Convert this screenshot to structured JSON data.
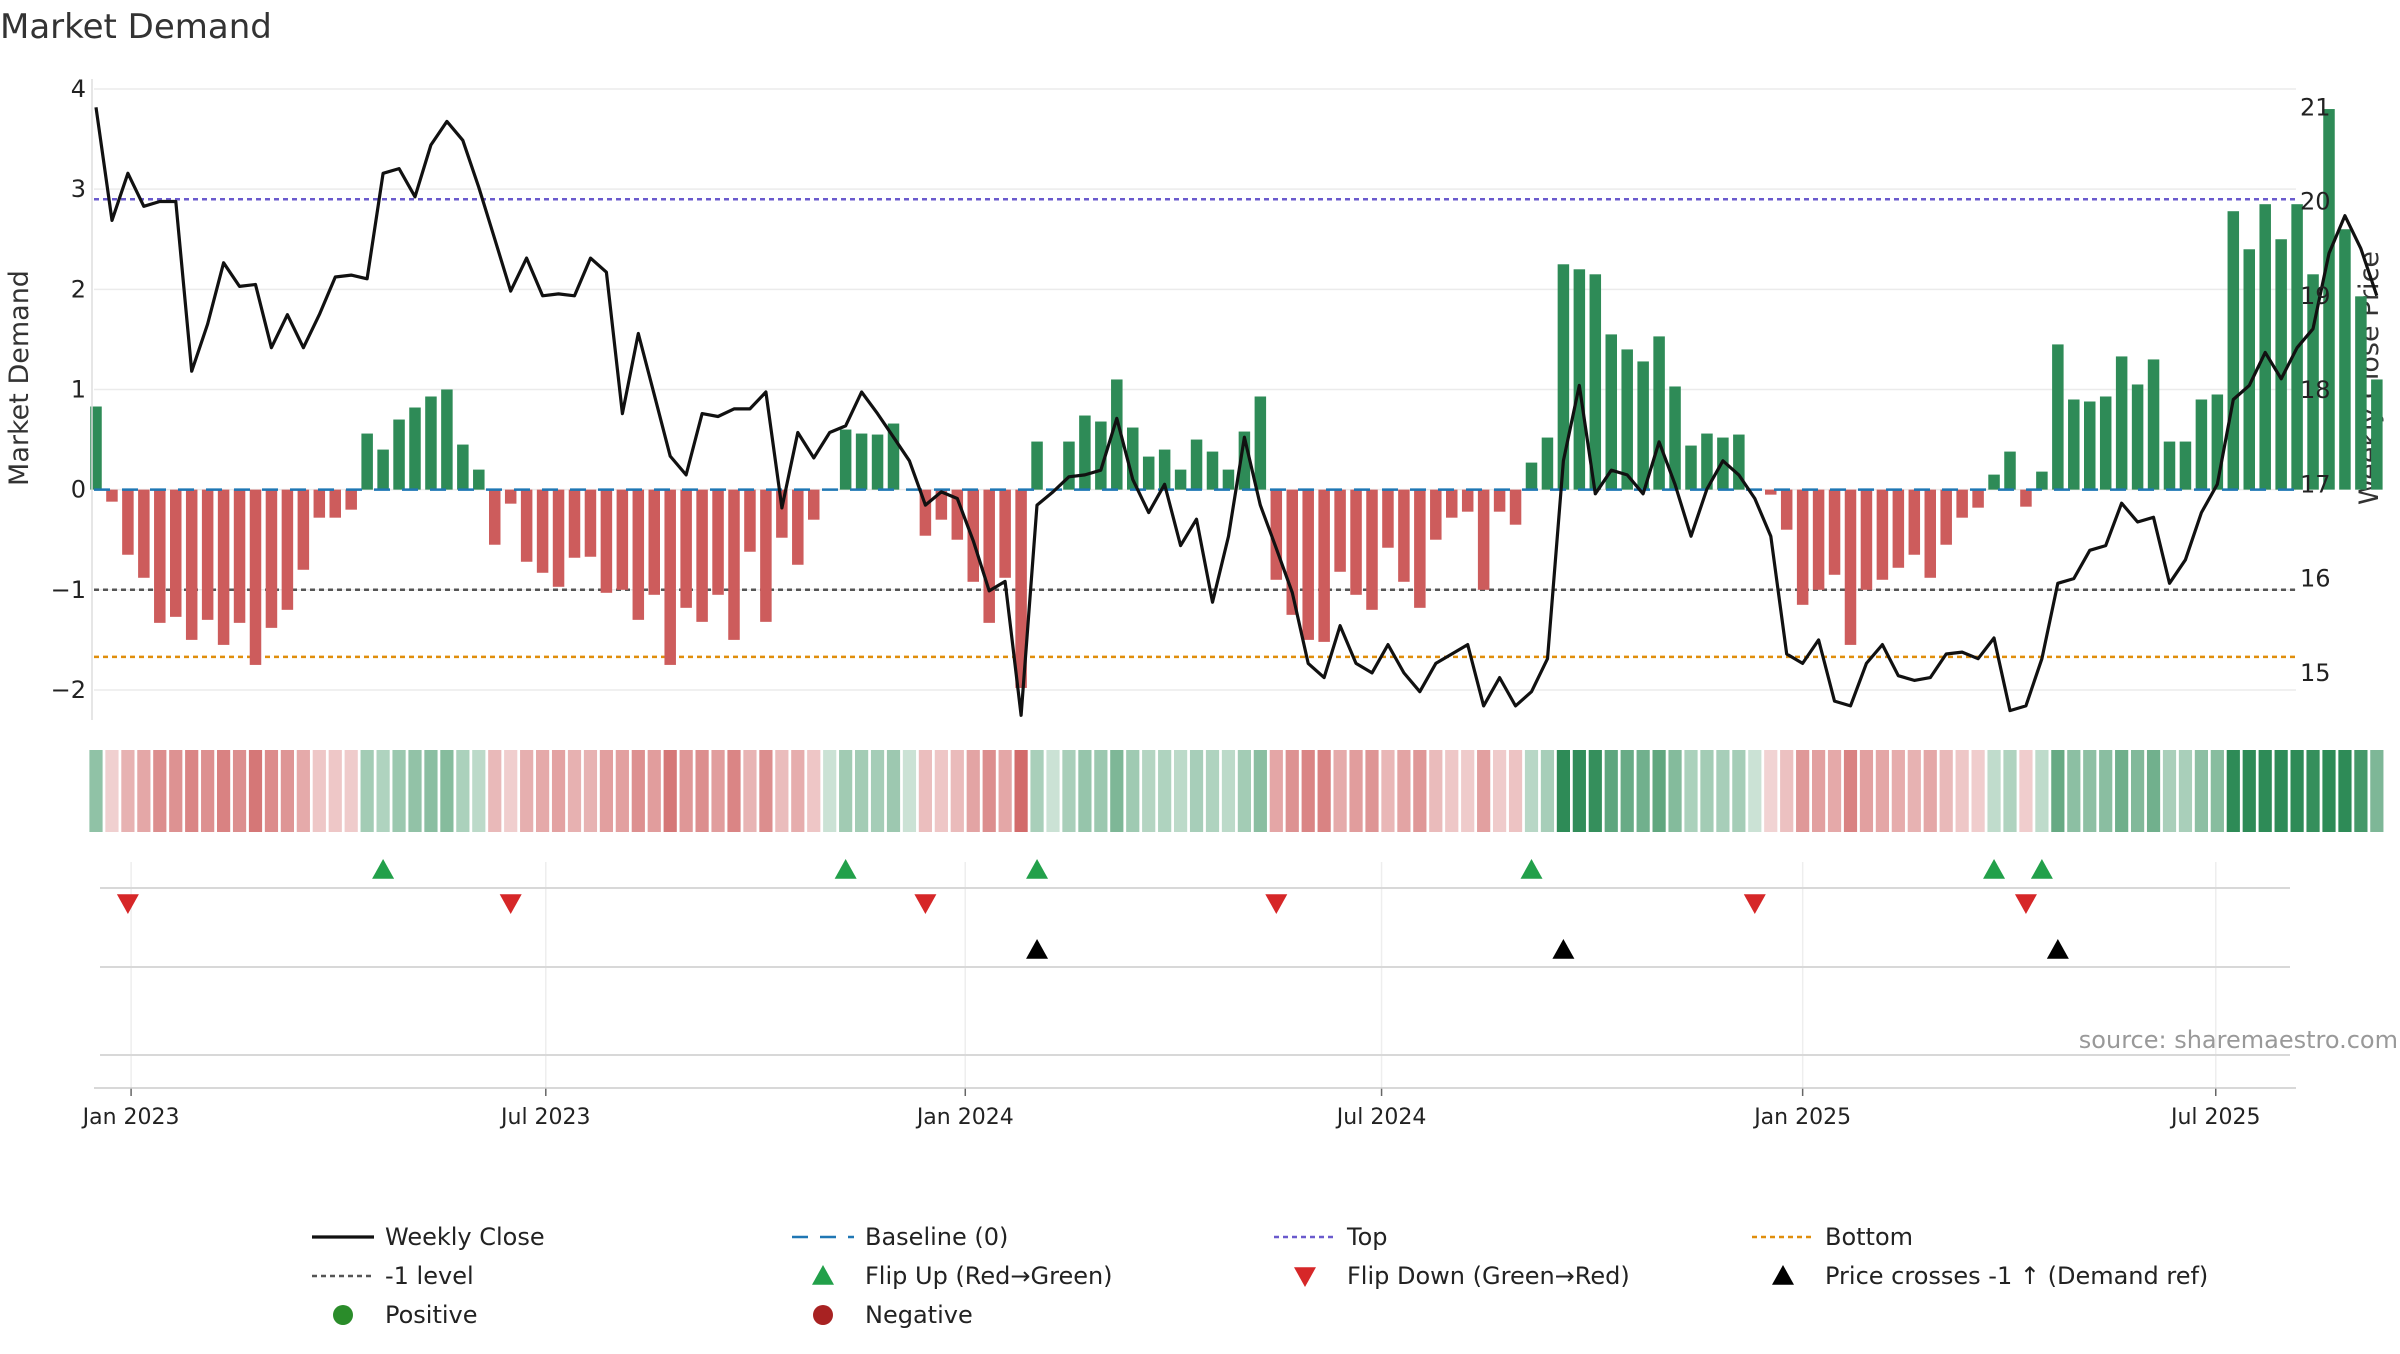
{
  "chart_data": {
    "type": "bar",
    "title": "Market Demand",
    "ylabel_left": "Market Demand",
    "ylabel_right": "Weekly Close Price",
    "source": "source: sharemaestro.com",
    "ylim_left": [
      -2.3,
      4.1
    ],
    "ylim_right": [
      14.5,
      21.3
    ],
    "yticks_left": [
      {
        "v": 4,
        "label": "4"
      },
      {
        "v": 3,
        "label": "3"
      },
      {
        "v": 2,
        "label": "2"
      },
      {
        "v": 1,
        "label": "1"
      },
      {
        "v": 0,
        "label": "0"
      },
      {
        "v": -1,
        "label": "−1"
      },
      {
        "v": -2,
        "label": "−2"
      }
    ],
    "yticks_right": [
      {
        "v": 21,
        "label": "21"
      },
      {
        "v": 20,
        "label": "20"
      },
      {
        "v": 19,
        "label": "19"
      },
      {
        "v": 18,
        "label": "18"
      },
      {
        "v": 17,
        "label": "17"
      },
      {
        "v": 16,
        "label": "16"
      },
      {
        "v": 15,
        "label": "15"
      }
    ],
    "xticks": [
      {
        "i": 2.2,
        "label": "Jan 2023"
      },
      {
        "i": 28.2,
        "label": "Jul 2023"
      },
      {
        "i": 54.5,
        "label": "Jan 2024"
      },
      {
        "i": 80.6,
        "label": "Jul 2024"
      },
      {
        "i": 107.0,
        "label": "Jan 2025"
      },
      {
        "i": 132.9,
        "label": "Jul 2025"
      }
    ],
    "reference_lines": {
      "top": 2.9,
      "bottom": -1.67,
      "minus_one": -1,
      "baseline": 0
    },
    "demand": [
      0.83,
      -0.12,
      -0.65,
      -0.88,
      -1.33,
      -1.27,
      -1.5,
      -1.3,
      -1.55,
      -1.33,
      -1.75,
      -1.38,
      -1.2,
      -0.8,
      -0.28,
      -0.28,
      -0.2,
      0.56,
      0.4,
      0.7,
      0.82,
      0.93,
      1.0,
      0.45,
      0.2,
      -0.55,
      -0.14,
      -0.72,
      -0.83,
      -0.97,
      -0.68,
      -0.67,
      -1.03,
      -1.0,
      -1.3,
      -1.05,
      -1.75,
      -1.18,
      -1.32,
      -1.05,
      -1.5,
      -0.62,
      -1.32,
      -0.48,
      -0.75,
      -0.3,
      0.0,
      0.6,
      0.56,
      0.55,
      0.66,
      0.0,
      -0.46,
      -0.3,
      -0.5,
      -0.92,
      -1.33,
      -0.88,
      -1.98,
      0.48,
      0.0,
      0.48,
      0.74,
      0.68,
      1.1,
      0.62,
      0.33,
      0.4,
      0.2,
      0.5,
      0.38,
      0.2,
      0.58,
      0.93,
      -0.9,
      -1.25,
      -1.5,
      -1.52,
      -0.82,
      -1.05,
      -1.2,
      -0.58,
      -0.92,
      -1.18,
      -0.5,
      -0.28,
      -0.22,
      -1.0,
      -0.22,
      -0.35,
      0.27,
      0.52,
      2.25,
      2.2,
      2.15,
      1.55,
      1.4,
      1.28,
      1.53,
      1.03,
      0.44,
      0.56,
      0.52,
      0.55,
      0.0,
      -0.05,
      -0.4,
      -1.15,
      -1.0,
      -0.85,
      -1.55,
      -1.0,
      -0.9,
      -0.78,
      -0.65,
      -0.88,
      -0.55,
      -0.28,
      -0.18,
      0.15,
      0.38,
      -0.17,
      0.18,
      1.45,
      0.9,
      0.88,
      0.93,
      1.33,
      1.05,
      1.3,
      0.48,
      0.48,
      0.9,
      0.95,
      2.78,
      2.4,
      2.85,
      2.5,
      2.85,
      2.15,
      3.8,
      2.6,
      1.93,
      1.1
    ],
    "price": [
      21.0,
      19.8,
      20.3,
      19.95,
      20.0,
      20.0,
      18.2,
      18.7,
      19.35,
      19.1,
      19.12,
      18.45,
      18.8,
      18.45,
      18.8,
      19.2,
      19.22,
      19.18,
      20.3,
      20.35,
      20.05,
      20.6,
      20.85,
      20.65,
      20.15,
      19.6,
      19.05,
      19.4,
      19.0,
      19.02,
      19.0,
      19.4,
      19.25,
      17.75,
      18.6,
      17.95,
      17.3,
      17.1,
      17.75,
      17.72,
      17.8,
      17.8,
      17.98,
      16.75,
      17.55,
      17.28,
      17.55,
      17.62,
      17.98,
      17.75,
      17.5,
      17.25,
      16.78,
      16.92,
      16.85,
      16.4,
      15.87,
      15.97,
      14.55,
      16.78,
      16.92,
      17.08,
      17.1,
      17.15,
      17.7,
      17.05,
      16.7,
      17.0,
      16.35,
      16.63,
      15.75,
      16.45,
      17.5,
      16.78,
      16.32,
      15.85,
      15.1,
      14.95,
      15.5,
      15.1,
      15.0,
      15.3,
      15.0,
      14.8,
      15.1,
      15.2,
      15.3,
      14.65,
      14.95,
      14.65,
      14.8,
      15.15,
      17.25,
      18.05,
      16.9,
      17.15,
      17.1,
      16.9,
      17.45,
      17.0,
      16.45,
      16.95,
      17.25,
      17.1,
      16.85,
      16.45,
      15.2,
      15.1,
      15.35,
      14.7,
      14.65,
      15.1,
      15.3,
      14.97,
      14.92,
      14.95,
      15.2,
      15.22,
      15.15,
      15.37,
      14.6,
      14.65,
      15.15,
      15.95,
      16.0,
      16.3,
      16.35,
      16.8,
      16.6,
      16.65,
      15.95,
      16.2,
      16.7,
      17.0,
      17.9,
      18.05,
      18.4,
      18.12,
      18.45,
      18.65,
      19.45,
      19.85,
      19.5,
      19.0
    ],
    "flip_up": [
      18,
      47,
      59,
      90,
      119,
      122
    ],
    "flip_down": [
      2,
      26,
      52,
      74,
      104,
      121
    ],
    "price_crosses": [
      59,
      92,
      123
    ],
    "legend": [
      {
        "label": "Weekly Close",
        "marker": "line-solid",
        "color": "#111111"
      },
      {
        "label": "Baseline (0)",
        "marker": "line-dash",
        "color": "#1f77b4"
      },
      {
        "label": "Top",
        "marker": "line-dot",
        "color": "#6a5acd"
      },
      {
        "label": "Bottom",
        "marker": "line-dot",
        "color": "#e08e0b"
      },
      {
        "label": "-1 level",
        "marker": "line-dot",
        "color": "#555555"
      },
      {
        "label": "Flip Up (Red→Green)",
        "marker": "triangle-up",
        "color": "#22a04a"
      },
      {
        "label": "Flip Down (Green→Red)",
        "marker": "triangle-down",
        "color": "#d62728"
      },
      {
        "label": "Price crosses -1 ↑ (Demand ref)",
        "marker": "triangle-up",
        "color": "#000000"
      },
      {
        "label": "Positive",
        "marker": "circle",
        "color": "#2a8c2a"
      },
      {
        "label": "Negative",
        "marker": "circle",
        "color": "#a82222"
      }
    ]
  },
  "colors": {
    "positive_bar": "#2e8b57",
    "negative_bar": "#cd5c5c",
    "price_line": "#111111",
    "baseline": "#1f77b4",
    "top": "#6a5acd",
    "bottom": "#e08e0b",
    "minus_one": "#555555",
    "flip_up": "#22a04a",
    "flip_down": "#d62728",
    "cross": "#000000",
    "grid": "#ebebeb"
  }
}
